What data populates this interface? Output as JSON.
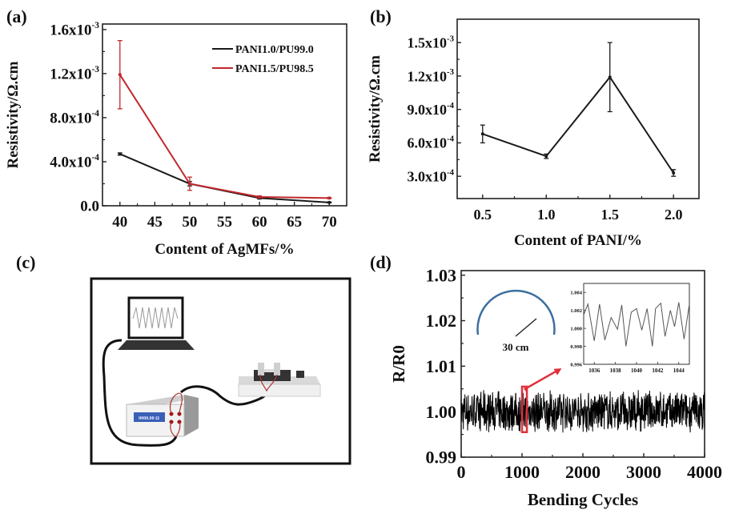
{
  "panels": {
    "a": {
      "label": "(a)"
    },
    "b": {
      "label": "(b)"
    },
    "c": {
      "label": "(c)",
      "caption": "Measurement setup schematic: laptop, resistance meter, bending stage",
      "meter_display": "0000.00 Ω"
    },
    "d": {
      "label": "(d)"
    }
  },
  "chart_data": [
    {
      "id": "a",
      "type": "line",
      "title": "",
      "xlabel": "Content of AgMFs/%",
      "ylabel": "Resistivity/Ω.cm",
      "xlim": [
        37.5,
        72.5
      ],
      "ylim": [
        0,
        0.00165
      ],
      "xticks": [
        40,
        45,
        50,
        55,
        60,
        65,
        70
      ],
      "xtick_labels": [
        "40",
        "45",
        "50",
        "55",
        "60",
        "65",
        "70"
      ],
      "yticks": [
        0,
        0.0004,
        0.0008,
        0.0012,
        0.0016
      ],
      "ytick_labels": [
        {
          "mant": "0.0",
          "exp": ""
        },
        {
          "mant": "4.0x10",
          "exp": "-4"
        },
        {
          "mant": "8.0x10",
          "exp": "-4"
        },
        {
          "mant": "1.2x10",
          "exp": "-3"
        },
        {
          "mant": "1.6x10",
          "exp": "-3"
        }
      ],
      "legend_position": "top-right",
      "series": [
        {
          "name": "PANI1.0/PU99.0",
          "color": "#1a1a1a",
          "x": [
            40,
            50,
            60,
            70
          ],
          "y": [
            0.00047,
            0.0002,
            7e-05,
            3e-05
          ],
          "err": [
            1e-05,
            2e-05,
            8e-06,
            4e-06
          ]
        },
        {
          "name": "PANI1.5/PU98.5",
          "color": "#c0282d",
          "x": [
            40,
            50,
            60,
            70
          ],
          "y": [
            0.00119,
            0.0002,
            8e-05,
            7e-05
          ],
          "err": [
            0.00031,
            6e-05,
            1e-05,
            5e-06
          ]
        }
      ]
    },
    {
      "id": "b",
      "type": "line",
      "title": "",
      "xlabel": "Content of PANI/%",
      "ylabel": "Resistivity/Ω.cm",
      "xlim": [
        0.3,
        2.2
      ],
      "ylim": [
        0.0001,
        0.00171
      ],
      "xticks": [
        0.5,
        1.0,
        1.5,
        2.0
      ],
      "xtick_labels": [
        "0.5",
        "1.0",
        "1.5",
        "2.0"
      ],
      "yticks": [
        0.0003,
        0.0006,
        0.0009,
        0.0012,
        0.0015
      ],
      "ytick_labels": [
        {
          "mant": "3.0x10",
          "exp": "-4"
        },
        {
          "mant": "6.0x10",
          "exp": "-4"
        },
        {
          "mant": "9.0x10",
          "exp": "-4"
        },
        {
          "mant": "1.2x10",
          "exp": "-3"
        },
        {
          "mant": "1.5x10",
          "exp": "-3"
        }
      ],
      "series": [
        {
          "name": "Resistivity",
          "color": "#1a1a1a",
          "x": [
            0.5,
            1.0,
            1.5,
            2.0
          ],
          "y": [
            0.00068,
            0.00048,
            0.00119,
            0.00033
          ],
          "err": [
            8e-05,
            2e-05,
            0.00031,
            3e-05
          ]
        }
      ]
    },
    {
      "id": "d",
      "type": "line",
      "title": "",
      "xlabel": "Bending Cycles",
      "ylabel": "R/R0",
      "xlim": [
        0,
        4000
      ],
      "ylim": [
        0.99,
        1.031
      ],
      "xticks": [
        0,
        1000,
        2000,
        3000,
        4000
      ],
      "xtick_labels": [
        "0",
        "1000",
        "2000",
        "3000",
        "4000"
      ],
      "yticks": [
        0.99,
        1.0,
        1.01,
        1.02,
        1.03
      ],
      "ytick_labels": [
        "0.99",
        "1.00",
        "1.01",
        "1.02",
        "1.03"
      ],
      "series": [
        {
          "name": "R/R0",
          "color": "#000000",
          "description": "dense noisy trace around 1.000, range about 0.995–1.005 over 0–4000 cycles"
        }
      ],
      "highlight": {
        "x_range": [
          1000,
          1080
        ],
        "y_range": [
          0.9955,
          1.0055
        ],
        "color": "#e0303a"
      },
      "bend_annotation": "30 cm",
      "inset": {
        "type": "line",
        "xlim": [
          1035,
          1045
        ],
        "ylim": [
          0.996,
          1.005
        ],
        "xticks": [
          1036,
          1038,
          1040,
          1042,
          1044
        ],
        "xtick_labels": [
          "1036",
          "1038",
          "1040",
          "1042",
          "1044"
        ],
        "yticks": [
          0.996,
          0.998,
          1.0,
          1.002,
          1.004
        ],
        "ytick_labels": [
          "0.996",
          "0.998",
          "1.000",
          "1.002",
          "1.004"
        ],
        "x": [
          1035,
          1035.4,
          1036,
          1036.5,
          1037,
          1037.6,
          1038.2,
          1038.6,
          1039.0,
          1039.5,
          1040.0,
          1040.5,
          1041.0,
          1041.5,
          1041.8,
          1042.3,
          1042.7,
          1043.2,
          1043.6,
          1044.0,
          1044.5,
          1045
        ],
        "y": [
          1.0015,
          1.0027,
          0.9986,
          1.0027,
          0.9987,
          1.0012,
          0.9999,
          1.0026,
          0.998,
          1.0018,
          1.0022,
          0.9998,
          1.0022,
          0.998,
          1.0022,
          1.0028,
          0.9991,
          1.002,
          1.0002,
          1.0029,
          0.9988,
          1.0027
        ]
      }
    }
  ]
}
